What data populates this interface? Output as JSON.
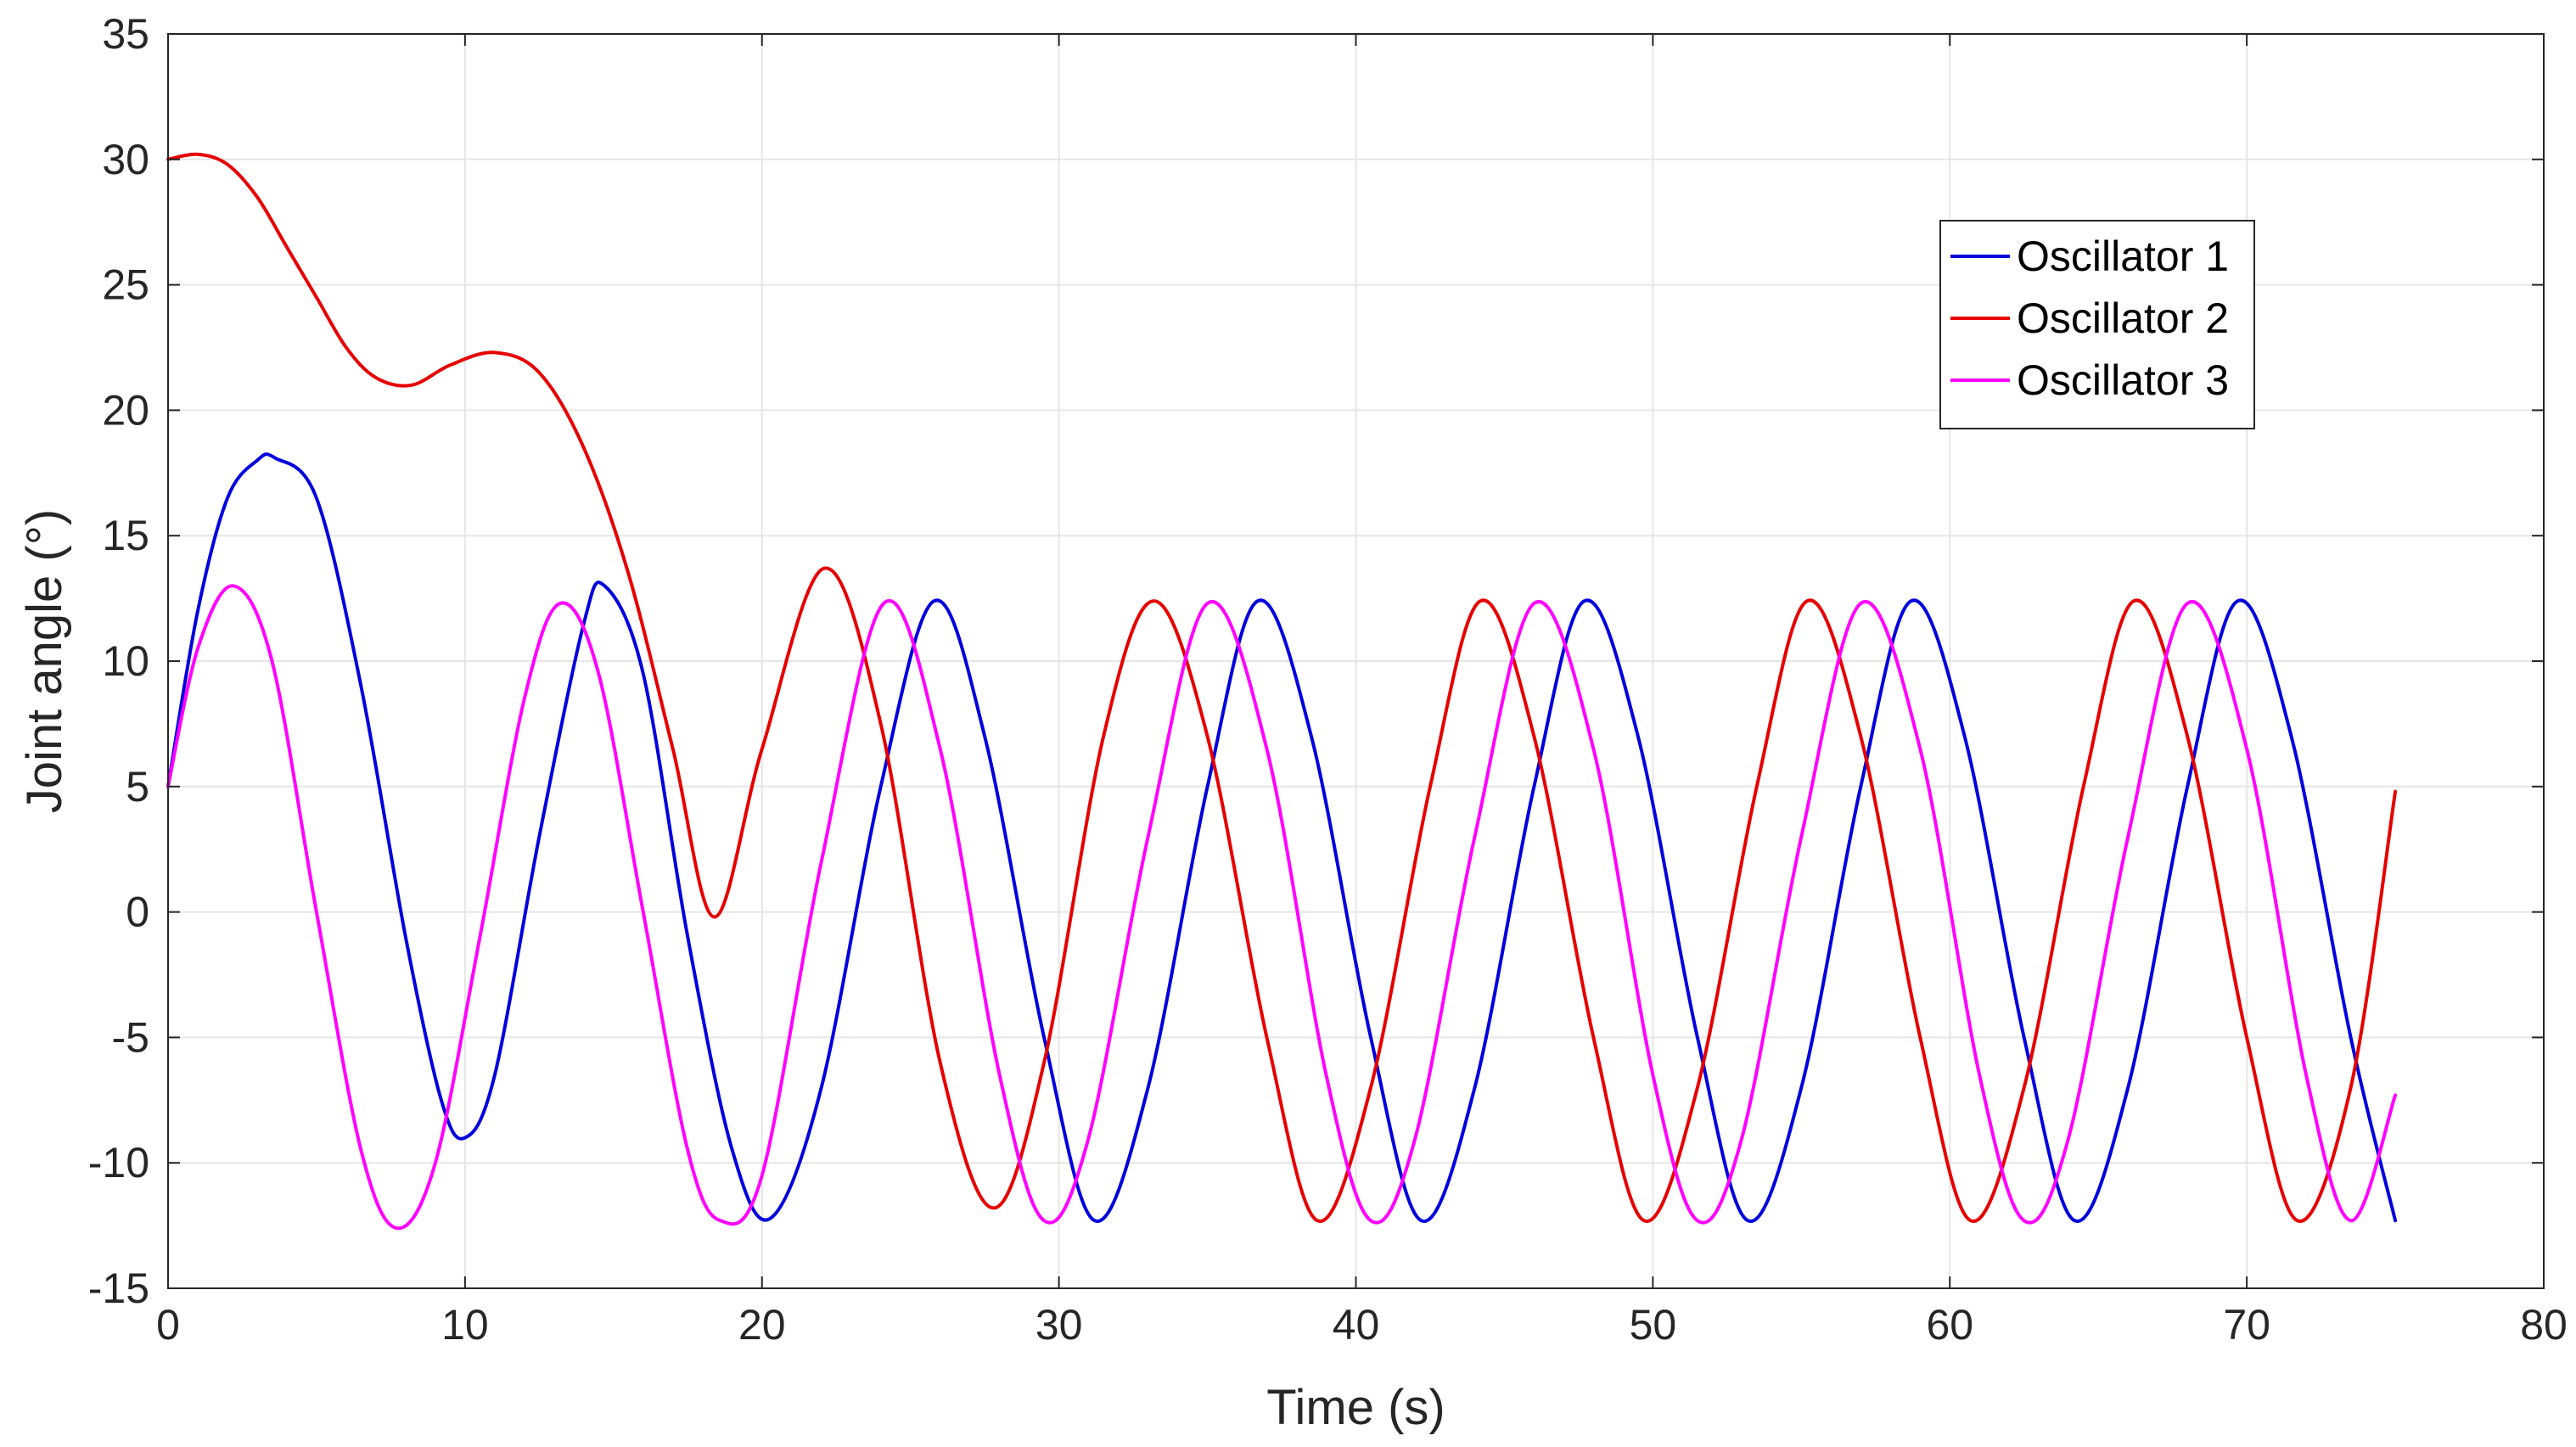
{
  "chart_data": {
    "type": "line",
    "title": "",
    "xlabel": "Time (s)",
    "ylabel": "Joint angle (°)",
    "xlim": [
      0,
      80
    ],
    "ylim": [
      -15,
      35
    ],
    "xticks": [
      0,
      10,
      20,
      30,
      40,
      50,
      60,
      70,
      80
    ],
    "yticks": [
      -15,
      -10,
      -5,
      0,
      5,
      10,
      15,
      20,
      25,
      30,
      35
    ],
    "grid": true,
    "legend_position": "top-right",
    "series": [
      {
        "name": "Oscillator 1",
        "color": "#0000dd",
        "x": [
          0,
          1,
          2,
          3,
          3.6,
          5,
          6.5,
          8,
          9.2,
          10,
          11,
          12.5,
          14,
          14.7,
          16,
          17.5,
          19,
          20.3,
          22,
          24,
          25.8,
          27.5,
          29.5,
          31.2,
          33,
          35,
          36.7,
          38.5,
          40.5,
          42.2,
          44,
          46,
          47.7,
          49.5,
          51.5,
          53.2,
          55,
          57,
          58.7,
          60.5,
          62.5,
          64.2,
          66,
          68,
          69.7,
          71.5,
          73.5,
          75
        ],
        "y": [
          5,
          12,
          16.5,
          18,
          18.1,
          16.5,
          9,
          -1,
          -7.5,
          -9,
          -6.5,
          3,
          11.5,
          13,
          9.5,
          -1,
          -9.5,
          -12.2,
          -7,
          5,
          12.4,
          7,
          -5,
          -12.3,
          -7,
          5,
          12.4,
          7,
          -5,
          -12.3,
          -7,
          5,
          12.4,
          7,
          -5,
          -12.3,
          -7,
          5,
          12.4,
          7,
          -5,
          -12.3,
          -7,
          5,
          12.4,
          7,
          -5,
          -12.3
        ]
      },
      {
        "name": "Oscillator 2",
        "color": "#e60000",
        "x": [
          0,
          1,
          2,
          3,
          4,
          5,
          6,
          7,
          8.2,
          9.5,
          11,
          12.5,
          14,
          15.5,
          17,
          18.4,
          20,
          22.1,
          24,
          26,
          27.8,
          29.5,
          31.5,
          33.2,
          35,
          37,
          38.7,
          40.5,
          42.5,
          44.2,
          46,
          48,
          49.7,
          51.5,
          53.5,
          55.2,
          57,
          59,
          60.7,
          62.5,
          64.5,
          66.2,
          68,
          70,
          71.7,
          73.5,
          75
        ],
        "y": [
          30,
          30.2,
          29.8,
          28.5,
          26.5,
          24.5,
          22.5,
          21.3,
          21,
          21.8,
          22.3,
          21.5,
          18.5,
          13.5,
          6.5,
          -0.2,
          6.5,
          13.7,
          7.5,
          -6,
          -11.8,
          -6,
          7,
          12.4,
          7,
          -5,
          -12.3,
          -7,
          5,
          12.4,
          7,
          -5,
          -12.3,
          -7,
          5,
          12.4,
          7,
          -5,
          -12.3,
          -7,
          5,
          12.4,
          7,
          -5,
          -12.3,
          -7,
          4.8
        ]
      },
      {
        "name": "Oscillator 3",
        "color": "#ff00ff",
        "x": [
          0,
          1,
          2.2,
          3.5,
          5,
          6.5,
          7.7,
          9,
          10.5,
          12,
          13.2,
          14.5,
          16,
          17.5,
          18.6,
          20,
          22,
          24.1,
          26,
          28,
          29.5,
          31,
          33,
          35,
          37,
          39,
          40.5,
          42,
          44,
          46,
          48,
          50,
          51.5,
          53,
          55,
          57,
          59,
          61,
          62.5,
          64,
          66,
          68,
          70,
          72,
          73.5,
          75
        ],
        "y": [
          5,
          10.5,
          13,
          10,
          0,
          -9.5,
          -12.6,
          -10,
          -1,
          8.5,
          12.3,
          9.5,
          0,
          -9.5,
          -12.3,
          -10.5,
          2,
          12.3,
          6.5,
          -6.5,
          -12.3,
          -9,
          3,
          12.3,
          6.5,
          -6.5,
          -12.3,
          -9,
          3,
          12.3,
          6.5,
          -6.5,
          -12.3,
          -9,
          3,
          12.3,
          6.5,
          -6.5,
          -12.3,
          -9,
          3,
          12.3,
          6.5,
          -6.5,
          -12.3,
          -7.3
        ]
      }
    ]
  }
}
